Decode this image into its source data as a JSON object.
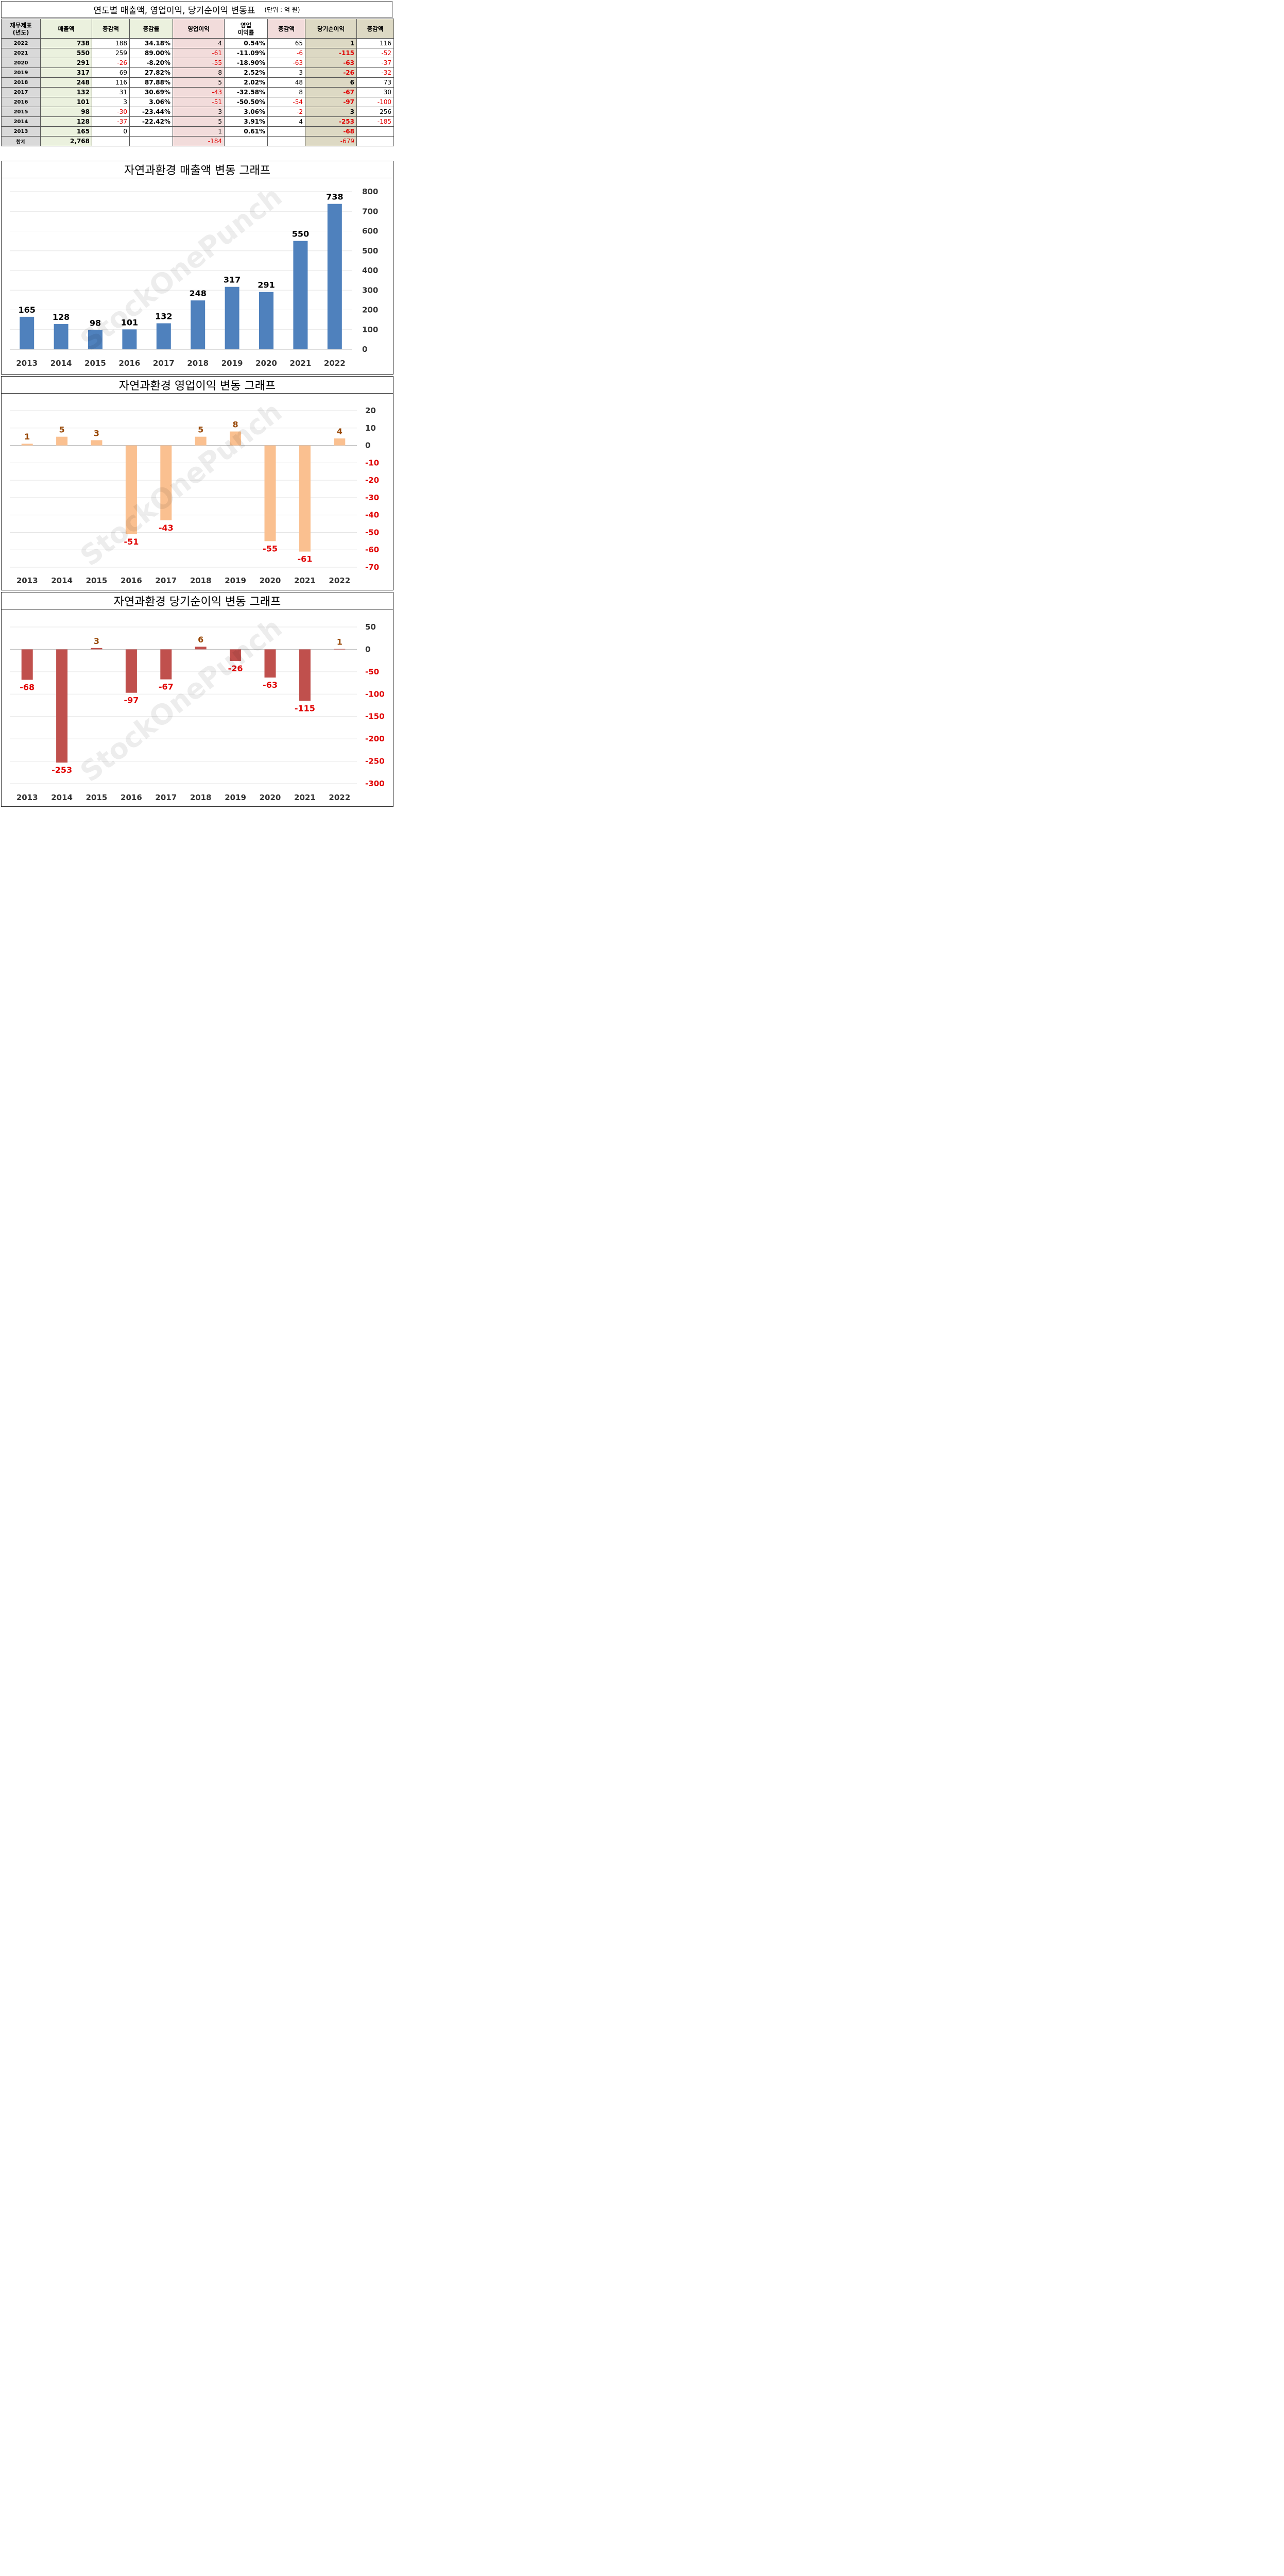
{
  "table": {
    "title": "연도별 매출액, 영업이익, 당기순이익 변동표",
    "unit": "(단위 : 억 원)",
    "headers": {
      "year": [
        "재무제표",
        "(년도)"
      ],
      "revenue": "매출액",
      "rev_change": "증감액",
      "rev_rate": "증감률",
      "op": "영업이익",
      "op_margin": [
        "영업",
        "이익률"
      ],
      "op_change": "증감액",
      "net": "당기순이익",
      "net_change": "증감액"
    },
    "rows": [
      {
        "year": "2022",
        "revenue": "738",
        "rev_change": "188",
        "rev_rate": "34.18%",
        "op": "4",
        "op_margin": "0.54%",
        "op_change": "65",
        "net": "1",
        "net_change": "116"
      },
      {
        "year": "2021",
        "revenue": "550",
        "rev_change": "259",
        "rev_rate": "89.00%",
        "op": "-61",
        "op_margin": "-11.09%",
        "op_change": "-6",
        "net": "-115",
        "net_change": "-52"
      },
      {
        "year": "2020",
        "revenue": "291",
        "rev_change": "-26",
        "rev_rate": "-8.20%",
        "op": "-55",
        "op_margin": "-18.90%",
        "op_change": "-63",
        "net": "-63",
        "net_change": "-37"
      },
      {
        "year": "2019",
        "revenue": "317",
        "rev_change": "69",
        "rev_rate": "27.82%",
        "op": "8",
        "op_margin": "2.52%",
        "op_change": "3",
        "net": "-26",
        "net_change": "-32"
      },
      {
        "year": "2018",
        "revenue": "248",
        "rev_change": "116",
        "rev_rate": "87.88%",
        "op": "5",
        "op_margin": "2.02%",
        "op_change": "48",
        "net": "6",
        "net_change": "73"
      },
      {
        "year": "2017",
        "revenue": "132",
        "rev_change": "31",
        "rev_rate": "30.69%",
        "op": "-43",
        "op_margin": "-32.58%",
        "op_change": "8",
        "net": "-67",
        "net_change": "30"
      },
      {
        "year": "2016",
        "revenue": "101",
        "rev_change": "3",
        "rev_rate": "3.06%",
        "op": "-51",
        "op_margin": "-50.50%",
        "op_change": "-54",
        "net": "-97",
        "net_change": "-100"
      },
      {
        "year": "2015",
        "revenue": "98",
        "rev_change": "-30",
        "rev_rate": "-23.44%",
        "op": "3",
        "op_margin": "3.06%",
        "op_change": "-2",
        "net": "3",
        "net_change": "256"
      },
      {
        "year": "2014",
        "revenue": "128",
        "rev_change": "-37",
        "rev_rate": "-22.42%",
        "op": "5",
        "op_margin": "3.91%",
        "op_change": "4",
        "net": "-253",
        "net_change": "-185"
      },
      {
        "year": "2013",
        "revenue": "165",
        "rev_change": "0",
        "rev_rate": "",
        "op": "1",
        "op_margin": "0.61%",
        "op_change": "",
        "net": "-68",
        "net_change": ""
      }
    ],
    "total": {
      "label": "합계",
      "revenue": "2,768",
      "op": "-184",
      "net": "-679"
    }
  },
  "watermark": "StockOnePunch",
  "chart_data": [
    {
      "type": "bar",
      "title": "자연과환경 매출액 변동 그래프",
      "categories": [
        "2013",
        "2014",
        "2015",
        "2016",
        "2017",
        "2018",
        "2019",
        "2020",
        "2021",
        "2022"
      ],
      "values": [
        165,
        128,
        98,
        101,
        132,
        248,
        317,
        291,
        550,
        738
      ],
      "ylim": [
        0,
        800
      ],
      "yticks": [
        0,
        100,
        200,
        300,
        400,
        500,
        600,
        700,
        800
      ],
      "color": "#4f81bd",
      "label_color": "#000000",
      "grid": true,
      "axis_side": "right"
    },
    {
      "type": "bar",
      "title": "자연과환경 영업이익 변동 그래프",
      "categories": [
        "2013",
        "2014",
        "2015",
        "2016",
        "2017",
        "2018",
        "2019",
        "2020",
        "2021",
        "2022"
      ],
      "values": [
        1,
        5,
        3,
        -51,
        -43,
        5,
        8,
        -55,
        -61,
        4
      ],
      "ylim": [
        -70,
        20
      ],
      "yticks": [
        20,
        10,
        0,
        -10,
        -20,
        -30,
        -40,
        -50,
        -60,
        -70
      ],
      "color": "#fac090",
      "pos_label_color": "#984807",
      "neg_label_color": "#e00000",
      "grid": true,
      "axis_side": "right"
    },
    {
      "type": "bar",
      "title": "자연과환경 당기순이익 변동 그래프",
      "categories": [
        "2013",
        "2014",
        "2015",
        "2016",
        "2017",
        "2018",
        "2019",
        "2020",
        "2021",
        "2022"
      ],
      "values": [
        -68,
        -253,
        3,
        -97,
        -67,
        6,
        -26,
        -63,
        -115,
        1
      ],
      "ylim": [
        -300,
        50
      ],
      "yticks": [
        50,
        0,
        -50,
        -100,
        -150,
        -200,
        -250,
        -300
      ],
      "color": "#c0504d",
      "pos_label_color": "#984807",
      "neg_label_color": "#e00000",
      "grid": true,
      "axis_side": "right"
    }
  ]
}
